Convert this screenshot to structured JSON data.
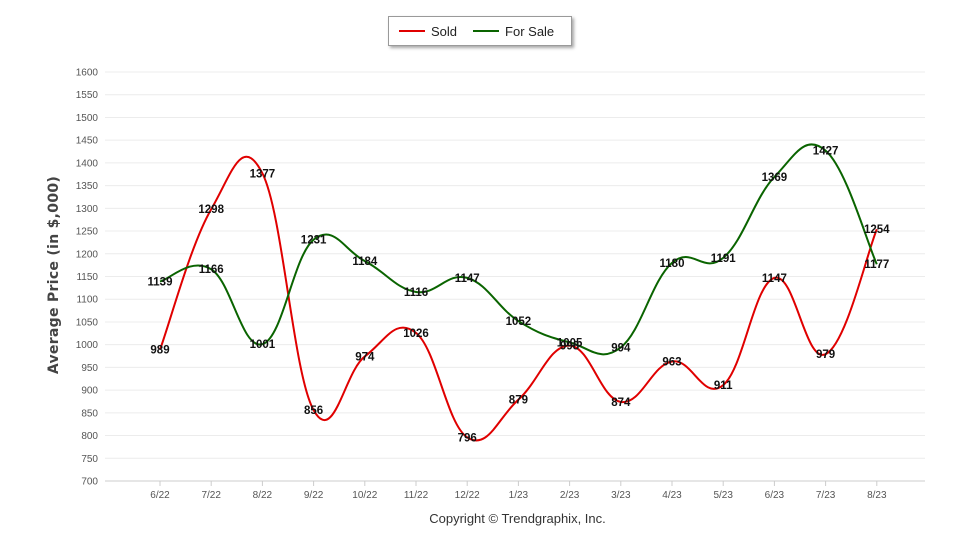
{
  "chart_data": {
    "type": "line",
    "categories": [
      "6/22",
      "7/22",
      "8/22",
      "9/22",
      "10/22",
      "11/22",
      "12/22",
      "1/23",
      "2/23",
      "3/23",
      "4/23",
      "5/23",
      "6/23",
      "7/23",
      "8/23"
    ],
    "series": [
      {
        "name": "Sold",
        "color": "#e00000",
        "values": [
          989,
          1298,
          1377,
          856,
          974,
          1026,
          796,
          879,
          998,
          874,
          963,
          911,
          1147,
          979,
          1254
        ]
      },
      {
        "name": "For Sale",
        "color": "#0a6400",
        "values": [
          1139,
          1166,
          1001,
          1231,
          1184,
          1116,
          1147,
          1052,
          1005,
          994,
          1180,
          1191,
          1369,
          1427,
          1177
        ]
      }
    ],
    "y_ticks": [
      "700",
      "750",
      "800",
      "850",
      "900",
      "950",
      "1000",
      "1050",
      "1100",
      "1150",
      "1200",
      "1250",
      "1300",
      "1350",
      "1400",
      "1450",
      "1500",
      "1550",
      "1600"
    ],
    "ylim": [
      700,
      1600
    ],
    "ylabel": "Average Price (in $,000)",
    "xlabel": "",
    "grid": true,
    "legend_position": "top-center",
    "footer": "Copyright © Trendgraphix, Inc."
  }
}
